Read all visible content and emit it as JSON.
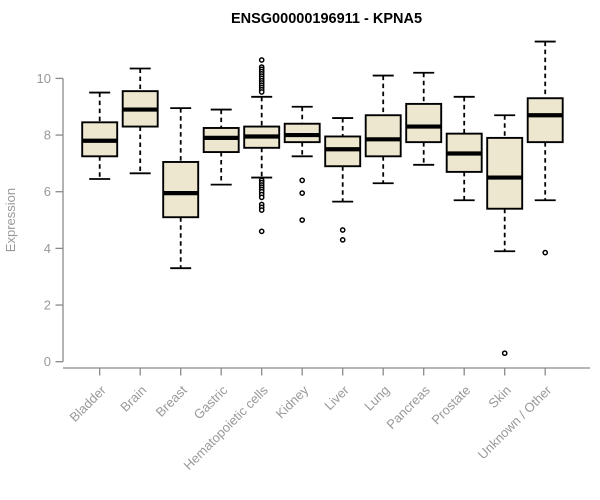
{
  "title": "ENSG00000196911 - KPNA5",
  "colors": {
    "box_fill": "#EDE7CF",
    "box_stroke": "#000000",
    "median_color": "#000000",
    "whisker_color": "#000000",
    "outlier_stroke": "#000000",
    "axis_line": "#8a8a8a",
    "tick_label": "#999999",
    "axis_label": "#999999",
    "title_color": "#000000",
    "background": "#ffffff"
  },
  "chart_data": {
    "type": "boxplot",
    "title": "ENSG00000196911 - KPNA5",
    "xlabel": "",
    "ylabel": "Expression",
    "ylim": [
      0,
      11.5
    ],
    "yticks": [
      0,
      2,
      4,
      6,
      8,
      10
    ],
    "grid": false,
    "legend": "none",
    "categories": [
      "Bladder",
      "Brain",
      "Breast",
      "Gastric",
      "Hematopoietic cells",
      "Kidney",
      "Liver",
      "Lung",
      "Pancreas",
      "Prostate",
      "Skin",
      "Unknown / Other"
    ],
    "series": [
      {
        "name": "Bladder",
        "whisker_low": 6.45,
        "q1": 7.25,
        "median": 7.8,
        "q3": 8.45,
        "whisker_high": 9.5,
        "outliers": []
      },
      {
        "name": "Brain",
        "whisker_low": 6.65,
        "q1": 8.3,
        "median": 8.9,
        "q3": 9.55,
        "whisker_high": 10.35,
        "outliers": []
      },
      {
        "name": "Breast",
        "whisker_low": 3.3,
        "q1": 5.1,
        "median": 5.95,
        "q3": 7.05,
        "whisker_high": 8.95,
        "outliers": []
      },
      {
        "name": "Gastric",
        "whisker_low": 6.25,
        "q1": 7.4,
        "median": 7.9,
        "q3": 8.25,
        "whisker_high": 8.9,
        "outliers": []
      },
      {
        "name": "Hematopoietic cells",
        "whisker_low": 6.5,
        "q1": 7.55,
        "median": 7.95,
        "q3": 8.3,
        "whisker_high": 9.35,
        "outliers": [
          10.65,
          10.4,
          10.32,
          10.24,
          10.16,
          10.08,
          10.0,
          9.92,
          9.84,
          9.76,
          9.68,
          9.6,
          9.52,
          6.4,
          6.32,
          6.24,
          6.16,
          6.08,
          6.0,
          5.9,
          5.8,
          5.55,
          5.45,
          5.35,
          4.6
        ]
      },
      {
        "name": "Kidney",
        "whisker_low": 7.25,
        "q1": 7.75,
        "median": 8.0,
        "q3": 8.4,
        "whisker_high": 9.0,
        "outliers": [
          6.4,
          5.95,
          5.0
        ]
      },
      {
        "name": "Liver",
        "whisker_low": 5.65,
        "q1": 6.9,
        "median": 7.5,
        "q3": 7.95,
        "whisker_high": 8.6,
        "outliers": [
          4.65,
          4.3
        ]
      },
      {
        "name": "Lung",
        "whisker_low": 6.3,
        "q1": 7.25,
        "median": 7.85,
        "q3": 8.7,
        "whisker_high": 10.1,
        "outliers": []
      },
      {
        "name": "Pancreas",
        "whisker_low": 6.95,
        "q1": 7.75,
        "median": 8.3,
        "q3": 9.1,
        "whisker_high": 10.2,
        "outliers": []
      },
      {
        "name": "Prostate",
        "whisker_low": 5.7,
        "q1": 6.7,
        "median": 7.35,
        "q3": 8.05,
        "whisker_high": 9.35,
        "outliers": []
      },
      {
        "name": "Skin",
        "whisker_low": 3.9,
        "q1": 5.4,
        "median": 6.5,
        "q3": 7.9,
        "whisker_high": 8.7,
        "outliers": [
          0.3
        ]
      },
      {
        "name": "Unknown / Other",
        "whisker_low": 5.7,
        "q1": 7.75,
        "median": 8.7,
        "q3": 9.3,
        "whisker_high": 11.3,
        "outliers": [
          3.85
        ]
      }
    ]
  }
}
